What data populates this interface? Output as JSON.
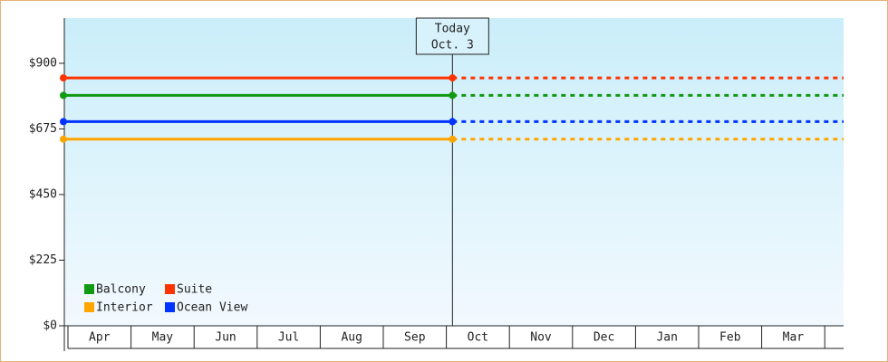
{
  "chart_data": {
    "type": "price-lines",
    "categories": [
      "Apr",
      "May",
      "Jun",
      "Jul",
      "Aug",
      "Sep",
      "Oct",
      "Nov",
      "Dec",
      "Jan",
      "Feb",
      "Mar"
    ],
    "series": [
      {
        "name": "Balcony",
        "color": "#119911",
        "value": 790
      },
      {
        "name": "Suite",
        "color": "#ff3300",
        "value": 850
      },
      {
        "name": "Interior",
        "color": "#ffa500",
        "value": 640
      },
      {
        "name": "Ocean View",
        "color": "#0033ff",
        "value": 700
      }
    ],
    "ylim": [
      0,
      1055
    ],
    "yticks": [
      {
        "value": 0,
        "label": "$0"
      },
      {
        "value": 225,
        "label": "$225"
      },
      {
        "value": 450,
        "label": "$450"
      },
      {
        "value": 675,
        "label": "$675"
      },
      {
        "value": 900,
        "label": "$900"
      }
    ],
    "today": {
      "label": "Today",
      "date": "Oct. 3"
    },
    "legend": "bottom-left"
  }
}
